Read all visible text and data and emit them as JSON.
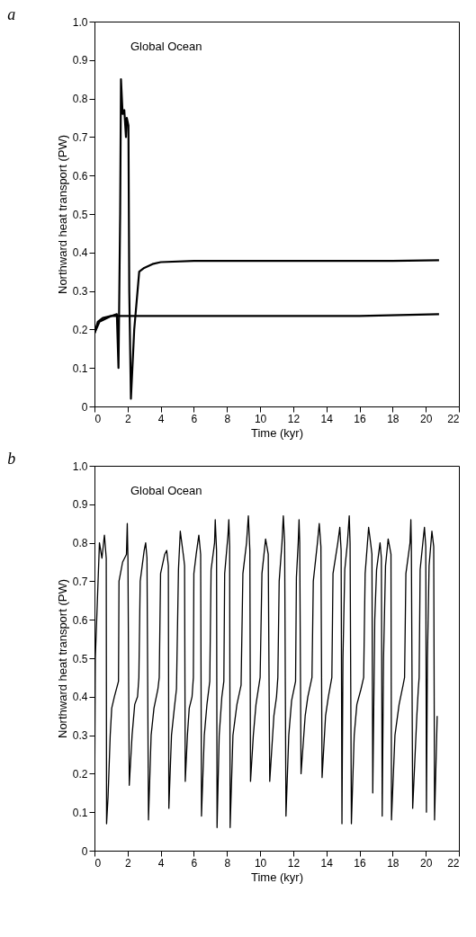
{
  "chart_data": [
    {
      "type": "line",
      "title": "a",
      "xlabel": "Time (kyr)",
      "ylabel": "Northward heat transport (PW)",
      "annotations": [
        "Global Ocean"
      ],
      "series": [
        {
          "color": "#000000",
          "x": [
            0,
            0.2,
            0.5,
            1,
            2,
            4,
            8,
            12,
            16,
            20.8
          ],
          "values": [
            0.19,
            0.22,
            0.23,
            0.235,
            0.235,
            0.235,
            0.235,
            0.235,
            0.235,
            0.24
          ]
        },
        {
          "color": "#000000",
          "x": [
            0,
            0.3,
            1.0,
            1.35,
            1.45,
            1.55,
            1.6,
            1.7,
            1.8,
            1.9,
            1.95,
            2.05,
            2.1,
            2.2,
            2.4,
            2.6,
            2.7,
            3.0,
            3.5,
            4,
            6,
            10,
            14,
            18,
            20.8
          ],
          "values": [
            0.19,
            0.22,
            0.235,
            0.24,
            0.1,
            0.5,
            0.85,
            0.76,
            0.77,
            0.7,
            0.75,
            0.73,
            0.3,
            0.02,
            0.2,
            0.3,
            0.35,
            0.36,
            0.37,
            0.375,
            0.378,
            0.378,
            0.378,
            0.378,
            0.38
          ]
        }
      ],
      "xlim": [
        0,
        22
      ],
      "xticks": [
        0,
        2,
        4,
        6,
        8,
        10,
        12,
        14,
        16,
        18,
        20,
        22
      ],
      "ylim": [
        0,
        1
      ],
      "yticks": [
        0,
        0.1,
        0.2,
        0.3,
        0.4,
        0.5,
        0.6,
        0.7,
        0.8,
        0.9,
        {
          "value": 1,
          "label": "1.0"
        }
      ]
    },
    {
      "type": "line",
      "title": "b",
      "xlabel": "Time (kyr)",
      "ylabel": "Northward heat transport (PW)",
      "annotations": [
        "Global Ocean"
      ],
      "series": [
        {
          "color": "#000000",
          "x": [
            0,
            0.05,
            0.3,
            0.45,
            0.6,
            0.71,
            0.73,
            0.82,
            0.95,
            1.04,
            1.2,
            1.45,
            1.48,
            1.7,
            1.93,
            1.98,
            2.02,
            2.1,
            2.27,
            2.43,
            2.6,
            2.68,
            2.76,
            3.0,
            3.09,
            3.17,
            3.26,
            3.42,
            3.59,
            3.83,
            3.91,
            3.99,
            4.24,
            4.36,
            4.46,
            4.49,
            4.65,
            4.82,
            4.95,
            5.07,
            5.18,
            5.39,
            5.44,
            5.48,
            5.61,
            5.72,
            5.89,
            5.97,
            6.0,
            6.14,
            6.3,
            6.41,
            6.46,
            6.63,
            6.79,
            6.96,
            7.04,
            7.25,
            7.29,
            7.37,
            7.4,
            7.53,
            7.69,
            7.81,
            7.86,
            8.06,
            8.11,
            8.16,
            8.19,
            8.36,
            8.6,
            8.85,
            8.96,
            9.18,
            9.29,
            9.38,
            9.42,
            9.59,
            9.75,
            10.0,
            10.11,
            10.33,
            10.49,
            10.58,
            10.83,
            10.99,
            11.07,
            11.15,
            11.32,
            11.4,
            11.48,
            11.56,
            11.73,
            11.9,
            12.14,
            12.19,
            12.3,
            12.35,
            12.39,
            12.47,
            12.72,
            12.88,
            13.13,
            13.21,
            13.46,
            13.57,
            13.67,
            13.74,
            13.95,
            14.12,
            14.33,
            14.4,
            14.69,
            14.81,
            14.89,
            14.94,
            15.0,
            15.11,
            15.27,
            15.38,
            15.43,
            15.51,
            15.68,
            15.84,
            16.09,
            16.25,
            16.34,
            16.55,
            16.67,
            16.75,
            16.8,
            16.92,
            17.03,
            17.24,
            17.32,
            17.37,
            17.45,
            17.57,
            17.73,
            17.9,
            17.93,
            18.14,
            18.39,
            18.63,
            18.72,
            18.8,
            19.05,
            19.1,
            19.13,
            19.21,
            19.46,
            19.55,
            19.6,
            19.66,
            19.87,
            19.92,
            20.0,
            20.04,
            20.1,
            20.2,
            20.37,
            20.48,
            20.53,
            20.69
          ],
          "values": [
            0.07,
            0.5,
            0.8,
            0.76,
            0.82,
            0.76,
            0.07,
            0.14,
            0.3,
            0.37,
            0.4,
            0.44,
            0.7,
            0.75,
            0.77,
            0.85,
            0.76,
            0.17,
            0.3,
            0.38,
            0.4,
            0.45,
            0.7,
            0.78,
            0.8,
            0.76,
            0.08,
            0.3,
            0.37,
            0.42,
            0.45,
            0.72,
            0.77,
            0.78,
            0.74,
            0.11,
            0.3,
            0.37,
            0.42,
            0.73,
            0.83,
            0.76,
            0.74,
            0.18,
            0.3,
            0.37,
            0.4,
            0.45,
            0.72,
            0.77,
            0.82,
            0.77,
            0.09,
            0.3,
            0.38,
            0.44,
            0.73,
            0.8,
            0.86,
            0.78,
            0.06,
            0.3,
            0.4,
            0.44,
            0.72,
            0.82,
            0.86,
            0.79,
            0.06,
            0.3,
            0.38,
            0.43,
            0.72,
            0.8,
            0.87,
            0.78,
            0.18,
            0.3,
            0.38,
            0.45,
            0.72,
            0.81,
            0.77,
            0.18,
            0.35,
            0.4,
            0.45,
            0.7,
            0.8,
            0.87,
            0.8,
            0.09,
            0.3,
            0.39,
            0.44,
            0.71,
            0.8,
            0.86,
            0.8,
            0.2,
            0.35,
            0.4,
            0.45,
            0.7,
            0.8,
            0.85,
            0.79,
            0.19,
            0.35,
            0.4,
            0.45,
            0.72,
            0.8,
            0.84,
            0.78,
            0.07,
            0.5,
            0.73,
            0.8,
            0.87,
            0.8,
            0.07,
            0.3,
            0.38,
            0.42,
            0.45,
            0.72,
            0.84,
            0.8,
            0.77,
            0.15,
            0.6,
            0.73,
            0.8,
            0.76,
            0.09,
            0.5,
            0.74,
            0.81,
            0.77,
            0.08,
            0.3,
            0.38,
            0.43,
            0.45,
            0.72,
            0.8,
            0.86,
            0.79,
            0.11,
            0.35,
            0.42,
            0.45,
            0.73,
            0.82,
            0.84,
            0.79,
            0.1,
            0.5,
            0.74,
            0.83,
            0.79,
            0.08,
            0.35
          ]
        }
      ],
      "xlim": [
        0,
        22
      ],
      "xticks": [
        0,
        2,
        4,
        6,
        8,
        10,
        12,
        14,
        16,
        18,
        20,
        22
      ],
      "ylim": [
        0,
        1
      ],
      "yticks": [
        0,
        0.1,
        0.2,
        0.3,
        0.4,
        0.5,
        0.6,
        0.7,
        0.8,
        0.9,
        {
          "value": 1,
          "label": "1.0"
        }
      ]
    }
  ]
}
